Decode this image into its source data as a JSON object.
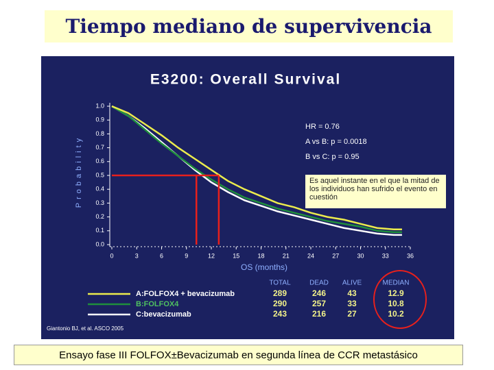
{
  "slide": {
    "title": "Tiempo mediano de supervivencia",
    "footer": "Ensayo fase III  FOLFOX±Bevacizumab en segunda línea de CCR metastásico"
  },
  "chart_data": {
    "type": "line",
    "title": "E3200: Overall Survival",
    "xlabel": "OS (months)",
    "ylabel": "Probability",
    "x": [
      0,
      2,
      4,
      6,
      8,
      10,
      12,
      14,
      16,
      18,
      20,
      22,
      24,
      26,
      28,
      30,
      32,
      34,
      35
    ],
    "series": [
      {
        "name": "A:FOLFOX4 + bevacizumab",
        "color": "#ecec4c",
        "legend_text_color": "#ffffff",
        "values": [
          1.0,
          0.95,
          0.87,
          0.79,
          0.7,
          0.62,
          0.54,
          0.46,
          0.4,
          0.35,
          0.3,
          0.27,
          0.23,
          0.2,
          0.18,
          0.15,
          0.12,
          0.11,
          0.11
        ]
      },
      {
        "name": "B:FOLFOX4",
        "color": "#1f8f3c",
        "legend_text_color": "#4fc060",
        "values": [
          1.0,
          0.93,
          0.83,
          0.73,
          0.64,
          0.55,
          0.47,
          0.4,
          0.34,
          0.3,
          0.26,
          0.23,
          0.2,
          0.17,
          0.15,
          0.13,
          0.1,
          0.09,
          0.09
        ]
      },
      {
        "name": "C:bevacizumab",
        "color": "#ffffff",
        "legend_text_color": "#ffffff",
        "values": [
          1.0,
          0.93,
          0.84,
          0.74,
          0.64,
          0.54,
          0.45,
          0.38,
          0.32,
          0.28,
          0.24,
          0.21,
          0.18,
          0.15,
          0.12,
          0.1,
          0.08,
          0.07,
          0.07
        ]
      }
    ],
    "xlim": [
      0,
      36
    ],
    "ylim": [
      0,
      1
    ],
    "xticks": [
      0,
      3,
      6,
      9,
      12,
      15,
      18,
      21,
      24,
      27,
      30,
      33,
      36
    ],
    "yticks": [
      {
        "value": 0,
        "label": "0.0"
      },
      0.1,
      0.2,
      0.3,
      0.4,
      0.5,
      0.6,
      0.7,
      0.8,
      0.9,
      {
        "value": 1,
        "label": "1.0"
      }
    ],
    "annotations": [
      "HR = 0.76",
      "A vs B: p = 0.0018",
      "B vs C: p = 0.95"
    ],
    "note": "Es aquel instante en el que la mitad de los individuos han sufrido el evento en cuestión",
    "median_level": 0.5,
    "summary_table": {
      "columns": [
        "TOTAL",
        "DEAD",
        "ALIVE",
        "MEDIAN"
      ],
      "rows": [
        [
          289,
          246,
          43,
          12.9
        ],
        [
          290,
          257,
          33,
          10.8
        ],
        [
          243,
          216,
          27,
          10.2
        ]
      ]
    },
    "source": "Giantonio BJ, et al. ASCO 2005"
  }
}
